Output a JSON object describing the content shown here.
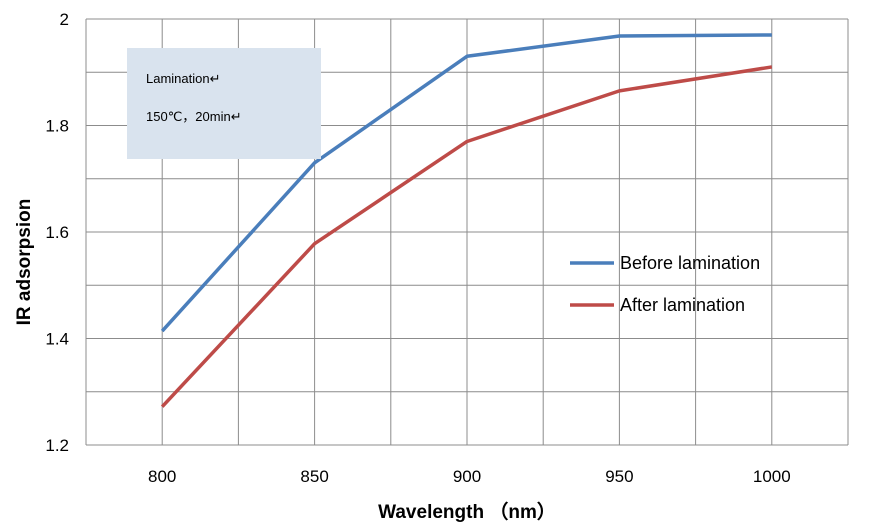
{
  "chart_data": {
    "type": "line",
    "x": [
      800,
      850,
      900,
      950,
      1000
    ],
    "xlim": [
      775,
      1025
    ],
    "ylim": [
      1.2,
      2.0
    ],
    "xticks": [
      "800",
      "850",
      "900",
      "950",
      "1000"
    ],
    "yticks": [
      "1.2",
      "1.4",
      "1.6",
      "1.8",
      "2"
    ],
    "xlabel": "Wavelength （nm）",
    "ylabel": "IR adsorpsion",
    "grid": true,
    "legend_position": "right",
    "series": [
      {
        "name": "Before lamination",
        "color": "#4a7ebb",
        "values": [
          1.414,
          1.73,
          1.93,
          1.968,
          1.97
        ]
      },
      {
        "name": "After lamination",
        "color": "#be4b48",
        "values": [
          1.272,
          1.578,
          1.77,
          1.865,
          1.91
        ]
      }
    ],
    "annotation": {
      "line1": "Lamination↵",
      "line2": "150℃，20min↵",
      "background": "#d9e3ee"
    }
  }
}
